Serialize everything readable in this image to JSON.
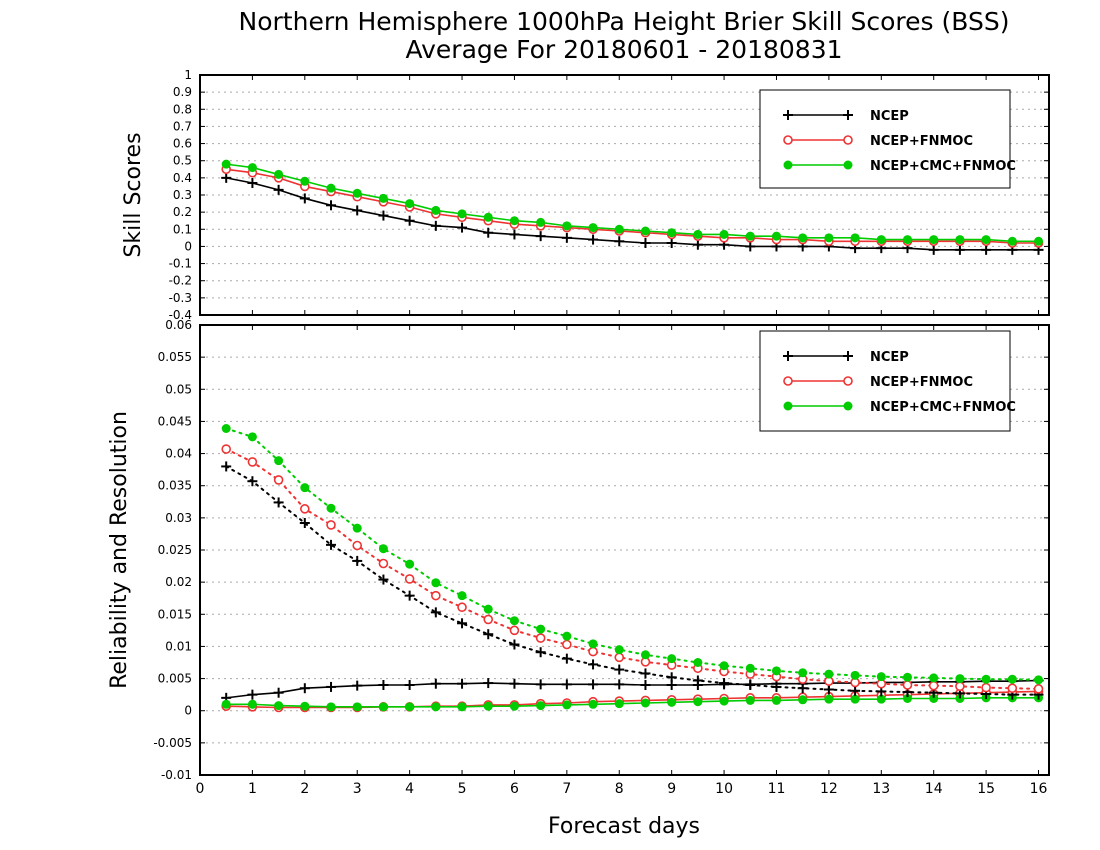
{
  "title": "Northern Hemisphere 1000hPa Height Brier Skill Scores (BSS)",
  "subtitle": "Average For 20180601 - 20180831",
  "xlabel": "Forecast days",
  "colors": {
    "NCEP": "#000000",
    "NCEP+FNMOC": "#ee3333",
    "NCEP+CMC+FNMOC": "#00cc00"
  },
  "chart_data": [
    {
      "type": "line",
      "ylabel": "Skill Scores",
      "xlim": [
        0,
        16.2
      ],
      "ylim": [
        -0.4,
        1
      ],
      "xticks": [
        0,
        1,
        2,
        3,
        4,
        5,
        6,
        7,
        8,
        9,
        10,
        11,
        12,
        13,
        14,
        15,
        16
      ],
      "yticks": [
        -0.4,
        -0.3,
        -0.2,
        -0.1,
        0,
        0.1,
        0.2,
        0.3,
        0.4,
        0.5,
        0.6,
        0.7,
        0.8,
        0.9,
        1
      ],
      "ytick_labels": [
        "-0.4",
        "-0.3",
        "-0.2",
        "-0.1",
        "0",
        "0.1",
        "0.2",
        "0.3",
        "0.4",
        "0.5",
        "0.6",
        "0.7",
        "0.8",
        "0.9",
        "1"
      ],
      "grid": true,
      "legend_position": "top-right",
      "x": [
        0.5,
        1,
        1.5,
        2,
        2.5,
        3,
        3.5,
        4,
        4.5,
        5,
        5.5,
        6,
        6.5,
        7,
        7.5,
        8,
        8.5,
        9,
        9.5,
        10,
        10.5,
        11,
        11.5,
        12,
        12.5,
        13,
        13.5,
        14,
        14.5,
        15,
        15.5,
        16
      ],
      "series": [
        {
          "name": "NCEP",
          "marker": "plus",
          "style": "solid",
          "values": [
            0.4,
            0.37,
            0.33,
            0.28,
            0.24,
            0.21,
            0.18,
            0.15,
            0.12,
            0.11,
            0.08,
            0.07,
            0.06,
            0.05,
            0.04,
            0.03,
            0.02,
            0.02,
            0.01,
            0.01,
            0.0,
            0.0,
            0.0,
            0.0,
            -0.01,
            -0.01,
            -0.01,
            -0.02,
            -0.02,
            -0.02,
            -0.02,
            -0.02
          ]
        },
        {
          "name": "NCEP+FNMOC",
          "marker": "open-circle",
          "style": "solid",
          "values": [
            0.45,
            0.43,
            0.4,
            0.35,
            0.32,
            0.29,
            0.26,
            0.23,
            0.19,
            0.17,
            0.15,
            0.13,
            0.12,
            0.11,
            0.1,
            0.09,
            0.08,
            0.07,
            0.06,
            0.05,
            0.05,
            0.04,
            0.04,
            0.03,
            0.03,
            0.03,
            0.03,
            0.03,
            0.03,
            0.03,
            0.02,
            0.02
          ]
        },
        {
          "name": "NCEP+CMC+FNMOC",
          "marker": "filled-circle",
          "style": "solid",
          "values": [
            0.48,
            0.46,
            0.42,
            0.38,
            0.34,
            0.31,
            0.28,
            0.25,
            0.21,
            0.19,
            0.17,
            0.15,
            0.14,
            0.12,
            0.11,
            0.1,
            0.09,
            0.08,
            0.07,
            0.07,
            0.06,
            0.06,
            0.05,
            0.05,
            0.05,
            0.04,
            0.04,
            0.04,
            0.04,
            0.04,
            0.03,
            0.03
          ]
        }
      ]
    },
    {
      "type": "line",
      "ylabel": "Reliability and Resolution",
      "xlim": [
        0,
        16.2
      ],
      "ylim": [
        -0.01,
        0.06
      ],
      "xticks": [
        0,
        1,
        2,
        3,
        4,
        5,
        6,
        7,
        8,
        9,
        10,
        11,
        12,
        13,
        14,
        15,
        16
      ],
      "yticks": [
        -0.01,
        -0.005,
        0,
        0.005,
        0.01,
        0.015,
        0.02,
        0.025,
        0.03,
        0.035,
        0.04,
        0.045,
        0.05,
        0.055,
        0.06
      ],
      "ytick_labels": [
        "-0.01",
        "-0.005",
        "0",
        "0.005",
        "0.01",
        "0.015",
        "0.02",
        "0.025",
        "0.03",
        "0.035",
        "0.04",
        "0.045",
        "0.05",
        "0.055",
        "0.06"
      ],
      "grid": true,
      "legend_position": "top-right",
      "x": [
        0.5,
        1,
        1.5,
        2,
        2.5,
        3,
        3.5,
        4,
        4.5,
        5,
        5.5,
        6,
        6.5,
        7,
        7.5,
        8,
        8.5,
        9,
        9.5,
        10,
        10.5,
        11,
        11.5,
        12,
        12.5,
        13,
        13.5,
        14,
        14.5,
        15,
        15.5,
        16
      ],
      "series": [
        {
          "name": "NCEP",
          "marker": "plus",
          "style": "solid",
          "component": "reliability",
          "values": [
            0.002,
            0.0025,
            0.0028,
            0.0035,
            0.0037,
            0.0039,
            0.004,
            0.004,
            0.0042,
            0.0042,
            0.0043,
            0.0042,
            0.0041,
            0.0041,
            0.0041,
            0.0041,
            0.004,
            0.004,
            0.004,
            0.0041,
            0.0041,
            0.0042,
            0.0042,
            0.0043,
            0.0043,
            0.0044,
            0.0044,
            0.0045,
            0.0045,
            0.0046,
            0.0046,
            0.0047
          ]
        },
        {
          "name": "NCEP+FNMOC",
          "marker": "open-circle",
          "style": "solid",
          "component": "reliability",
          "values": [
            0.0007,
            0.0006,
            0.0005,
            0.0005,
            0.0005,
            0.0005,
            0.0006,
            0.0006,
            0.0007,
            0.0007,
            0.0009,
            0.0009,
            0.0011,
            0.0012,
            0.0014,
            0.0015,
            0.0016,
            0.0017,
            0.0018,
            0.0019,
            0.002,
            0.002,
            0.0021,
            0.0022,
            0.0023,
            0.0024,
            0.0025,
            0.0026,
            0.0027,
            0.0028,
            0.0029,
            0.003
          ]
        },
        {
          "name": "NCEP+CMC+FNMOC",
          "marker": "filled-circle",
          "style": "solid",
          "component": "reliability",
          "values": [
            0.001,
            0.001,
            0.0008,
            0.0007,
            0.0006,
            0.0006,
            0.0006,
            0.0006,
            0.0006,
            0.0006,
            0.0007,
            0.0007,
            0.0008,
            0.0009,
            0.001,
            0.0011,
            0.0012,
            0.0013,
            0.0014,
            0.0015,
            0.0016,
            0.0016,
            0.0017,
            0.0018,
            0.0018,
            0.0018,
            0.0019,
            0.0019,
            0.0019,
            0.002,
            0.002,
            0.002
          ]
        },
        {
          "name": "NCEP",
          "marker": "plus",
          "style": "dotted",
          "component": "resolution",
          "values": [
            0.038,
            0.0357,
            0.0324,
            0.0292,
            0.0258,
            0.0233,
            0.0204,
            0.0179,
            0.0153,
            0.0136,
            0.0119,
            0.0103,
            0.0091,
            0.0081,
            0.0072,
            0.0064,
            0.0058,
            0.0052,
            0.0047,
            0.0043,
            0.004,
            0.0037,
            0.0035,
            0.0033,
            0.0031,
            0.003,
            0.0029,
            0.0028,
            0.0027,
            0.0026,
            0.0025,
            0.0025
          ]
        },
        {
          "name": "NCEP+FNMOC",
          "marker": "open-circle",
          "style": "dotted",
          "component": "resolution",
          "values": [
            0.0407,
            0.0387,
            0.0359,
            0.0314,
            0.0289,
            0.0257,
            0.0229,
            0.0205,
            0.0179,
            0.0161,
            0.0142,
            0.0125,
            0.0113,
            0.0103,
            0.0092,
            0.0083,
            0.0076,
            0.0071,
            0.0066,
            0.0061,
            0.0057,
            0.0053,
            0.0049,
            0.0046,
            0.0044,
            0.0042,
            0.004,
            0.0039,
            0.0038,
            0.0036,
            0.0035,
            0.0034
          ]
        },
        {
          "name": "NCEP+CMC+FNMOC",
          "marker": "filled-circle",
          "style": "dotted",
          "component": "resolution",
          "values": [
            0.0439,
            0.0426,
            0.0389,
            0.0347,
            0.0315,
            0.0284,
            0.0252,
            0.0228,
            0.0199,
            0.0179,
            0.0158,
            0.014,
            0.0127,
            0.0116,
            0.0104,
            0.0095,
            0.0087,
            0.0081,
            0.0075,
            0.007,
            0.0066,
            0.0062,
            0.0059,
            0.0057,
            0.0055,
            0.0053,
            0.0052,
            0.0051,
            0.005,
            0.0049,
            0.0049,
            0.0048
          ]
        }
      ]
    }
  ]
}
